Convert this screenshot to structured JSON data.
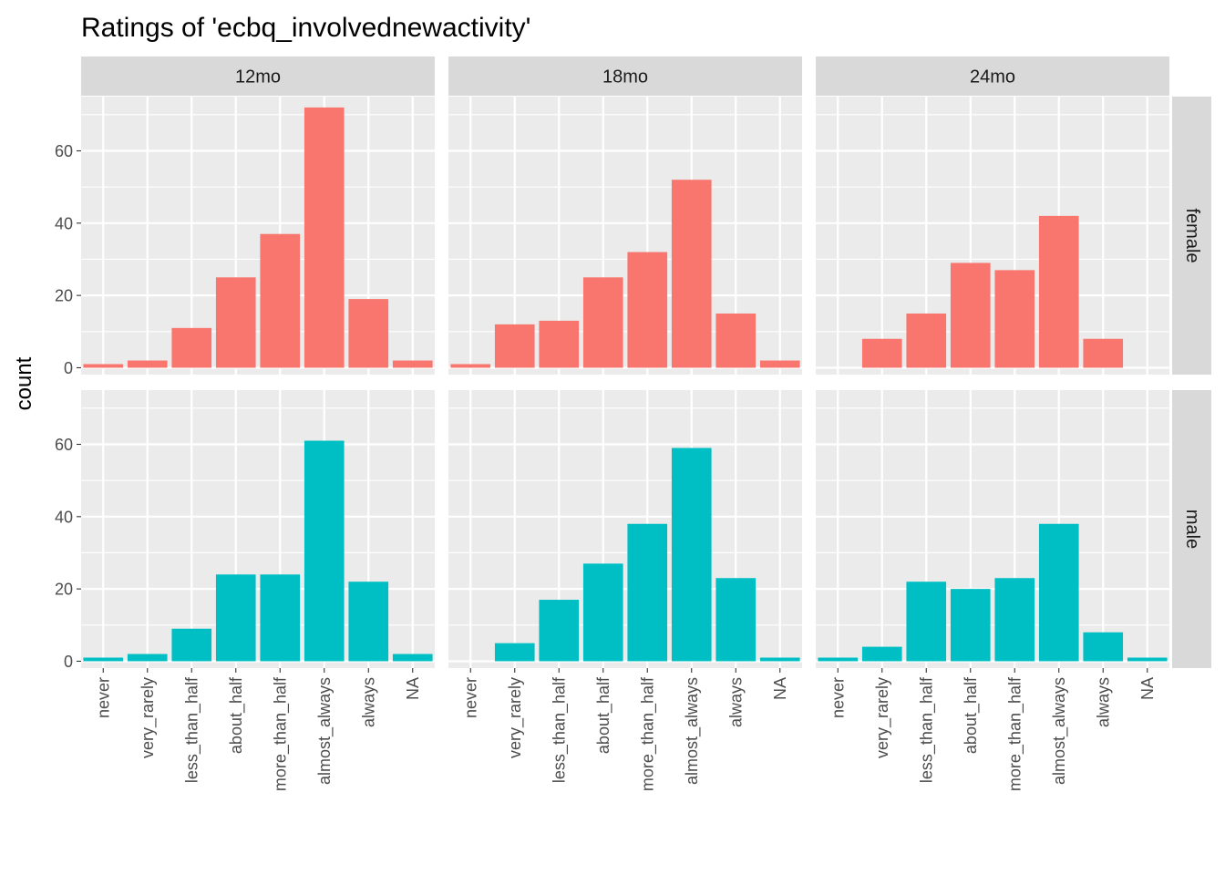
{
  "chart_data": {
    "type": "bar",
    "title": "Ratings of 'ecbq_involvednewactivity'",
    "xlabel": "",
    "ylabel": "count",
    "ylim": [
      0,
      75
    ],
    "yticks": [
      0,
      20,
      40,
      60
    ],
    "grid": true,
    "legend": "none",
    "categories": [
      "never",
      "very_rarely",
      "less_than_half",
      "about_half",
      "more_than_half",
      "almost_always",
      "always",
      "NA"
    ],
    "facet_cols": [
      "12mo",
      "18mo",
      "24mo"
    ],
    "facet_rows": [
      "female",
      "male"
    ],
    "row_colors": {
      "female": "#F8766D",
      "male": "#00BFC4"
    },
    "panel_background": "#EBEBEB",
    "strip_background": "#D9D9D9",
    "panels": [
      {
        "row": "female",
        "col": "12mo",
        "values": [
          1,
          2,
          11,
          25,
          37,
          72,
          19,
          2
        ]
      },
      {
        "row": "female",
        "col": "18mo",
        "values": [
          1,
          12,
          13,
          25,
          32,
          52,
          15,
          2
        ]
      },
      {
        "row": "female",
        "col": "24mo",
        "values": [
          0,
          8,
          15,
          29,
          27,
          42,
          8,
          0
        ]
      },
      {
        "row": "male",
        "col": "12mo",
        "values": [
          1,
          2,
          9,
          24,
          24,
          61,
          22,
          2
        ]
      },
      {
        "row": "male",
        "col": "18mo",
        "values": [
          0,
          5,
          17,
          27,
          38,
          59,
          23,
          1
        ]
      },
      {
        "row": "male",
        "col": "24mo",
        "values": [
          1,
          4,
          22,
          20,
          23,
          38,
          8,
          1
        ]
      }
    ]
  }
}
